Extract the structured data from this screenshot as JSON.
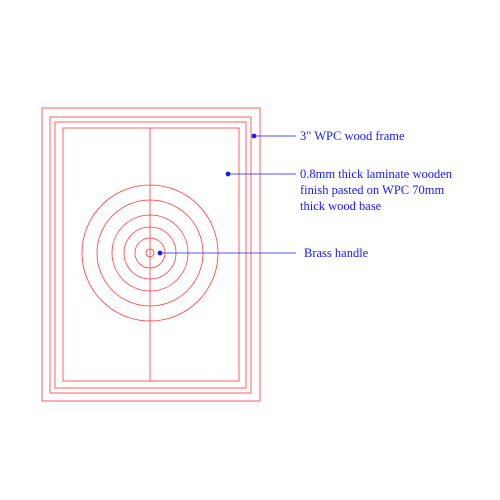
{
  "colors": {
    "outline": "#ff3b3b",
    "annotation": "#1a1aff",
    "background": "#ffffff"
  },
  "annotations": [
    {
      "id": "frame",
      "lines": [
        "3\" WPC wood frame"
      ]
    },
    {
      "id": "laminate",
      "lines": [
        "0.8mm thick laminate wooden",
        "finish pasted on WPC 70mm",
        "thick wood base"
      ]
    },
    {
      "id": "handle",
      "lines": [
        "Brass handle"
      ]
    }
  ]
}
